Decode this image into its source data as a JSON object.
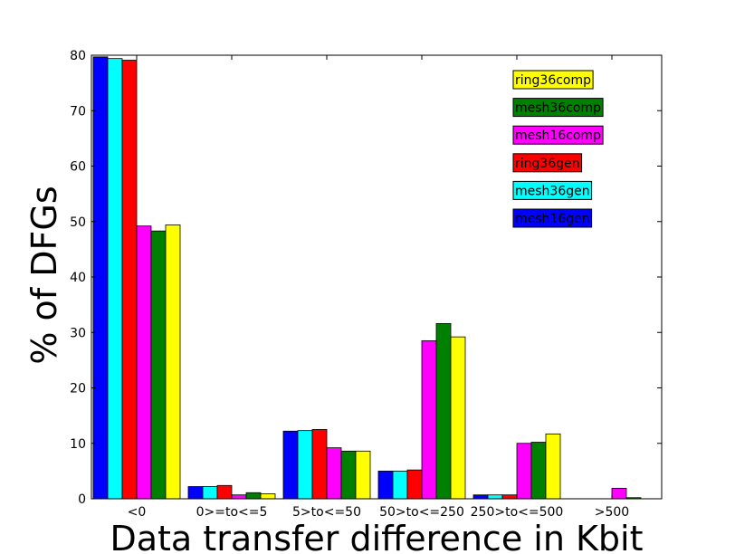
{
  "chart_data": {
    "type": "bar",
    "title": "",
    "xlabel": "Data transfer difference in Kbit",
    "ylabel": "% of DFGs",
    "ylim": [
      0,
      80
    ],
    "yticks": [
      "0",
      "10",
      "20",
      "30",
      "40",
      "50",
      "60",
      "70",
      "80"
    ],
    "categories": [
      "<0",
      "0>=to<=5",
      "5>to<=50",
      "50>to<=250",
      "250>to<=500",
      ">500"
    ],
    "series": [
      {
        "name": "mesh16gen",
        "color": "#0000ff",
        "values": [
          79.7,
          2.2,
          12.2,
          5.0,
          0.7,
          0.0
        ]
      },
      {
        "name": "mesh36gen",
        "color": "#00ffff",
        "values": [
          79.4,
          2.2,
          12.3,
          5.0,
          0.7,
          0.0
        ]
      },
      {
        "name": "ring36gen",
        "color": "#ff0000",
        "values": [
          79.1,
          2.4,
          12.5,
          5.2,
          0.7,
          0.0
        ]
      },
      {
        "name": "mesh16comp",
        "color": "#ff00ff",
        "values": [
          49.2,
          0.7,
          9.2,
          28.5,
          10.0,
          1.9
        ]
      },
      {
        "name": "mesh36comp",
        "color": "#008000",
        "values": [
          48.3,
          1.1,
          8.6,
          31.6,
          10.2,
          0.2
        ]
      },
      {
        "name": "ring36comp",
        "color": "#ffff00",
        "values": [
          49.4,
          0.9,
          8.6,
          29.2,
          11.7,
          0.0
        ]
      }
    ],
    "legend_order": [
      "ring36comp",
      "mesh36comp",
      "mesh16comp",
      "ring36gen",
      "mesh36gen",
      "mesh16gen"
    ],
    "legend_position": "top-right",
    "grid": false
  }
}
